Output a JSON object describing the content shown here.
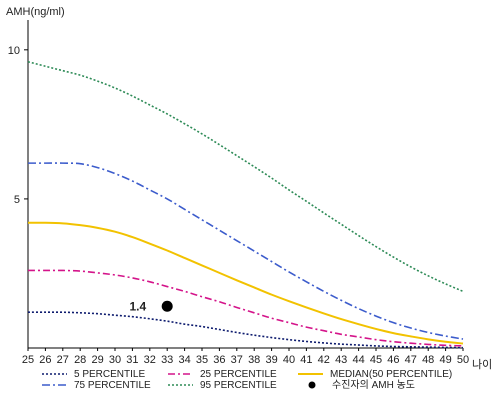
{
  "chart_data": {
    "type": "line",
    "ylabel": "AMH(ng/ml)",
    "xlabel": "나이",
    "xlim": [
      25,
      50
    ],
    "ylim": [
      0,
      11
    ],
    "x_ticks": [
      25,
      26,
      27,
      28,
      29,
      30,
      31,
      32,
      33,
      34,
      35,
      36,
      37,
      38,
      39,
      40,
      41,
      42,
      43,
      44,
      45,
      46,
      47,
      48,
      49,
      50
    ],
    "y_ticks": [
      5,
      10
    ],
    "x": [
      25,
      26,
      27,
      28,
      29,
      30,
      31,
      32,
      33,
      34,
      35,
      36,
      37,
      38,
      39,
      40,
      41,
      42,
      43,
      44,
      45,
      46,
      47,
      48,
      49,
      50
    ],
    "series": [
      {
        "key": "p5",
        "name": "5 PERCENTILE",
        "color": "#0d1b6e",
        "dash": "2,2",
        "values": [
          1.2,
          1.2,
          1.2,
          1.18,
          1.15,
          1.1,
          1.05,
          0.98,
          0.9,
          0.8,
          0.72,
          0.62,
          0.52,
          0.43,
          0.35,
          0.28,
          0.22,
          0.17,
          0.13,
          0.1,
          0.07,
          0.05,
          0.04,
          0.03,
          0.02,
          0.01
        ]
      },
      {
        "key": "p25",
        "name": "25 PERCENTILE",
        "color": "#d4148a",
        "dash": "7,3,2,3",
        "values": [
          2.6,
          2.6,
          2.6,
          2.58,
          2.52,
          2.45,
          2.35,
          2.22,
          2.06,
          1.9,
          1.72,
          1.55,
          1.36,
          1.18,
          1.0,
          0.85,
          0.7,
          0.58,
          0.46,
          0.37,
          0.28,
          0.21,
          0.16,
          0.12,
          0.09,
          0.07
        ]
      },
      {
        "key": "median",
        "name": "MEDIAN(50 PERCENTILE)",
        "color": "#f2c200",
        "dash": "",
        "values": [
          4.2,
          4.2,
          4.18,
          4.12,
          4.03,
          3.9,
          3.72,
          3.5,
          3.27,
          3.02,
          2.77,
          2.52,
          2.27,
          2.03,
          1.79,
          1.57,
          1.36,
          1.16,
          0.97,
          0.8,
          0.64,
          0.5,
          0.39,
          0.29,
          0.21,
          0.15
        ]
      },
      {
        "key": "p75",
        "name": "75 PERCENTILE",
        "color": "#3c5ccc",
        "dash": "8,3,2,3",
        "values": [
          6.2,
          6.2,
          6.2,
          6.18,
          6.05,
          5.85,
          5.6,
          5.3,
          5.0,
          4.65,
          4.3,
          3.95,
          3.6,
          3.25,
          2.9,
          2.55,
          2.22,
          1.9,
          1.6,
          1.32,
          1.07,
          0.85,
          0.67,
          0.52,
          0.4,
          0.3
        ]
      },
      {
        "key": "p95",
        "name": "95 PERCENTILE",
        "color": "#2e8b57",
        "dash": "2,2",
        "values": [
          9.6,
          9.45,
          9.3,
          9.15,
          8.95,
          8.72,
          8.45,
          8.15,
          7.85,
          7.52,
          7.18,
          6.82,
          6.45,
          6.08,
          5.7,
          5.3,
          4.92,
          4.53,
          4.15,
          3.77,
          3.4,
          3.05,
          2.72,
          2.42,
          2.15,
          1.9
        ]
      }
    ],
    "point": {
      "x": 33,
      "y": 1.4,
      "label": "1.4",
      "legend": "수진자의 AMH 농도",
      "color": "#000000"
    },
    "legend": [
      {
        "key": "p5",
        "label": "5 PERCENTILE"
      },
      {
        "key": "p25",
        "label": "25 PERCENTILE"
      },
      {
        "key": "median",
        "label": "MEDIAN(50 PERCENTILE)"
      },
      {
        "key": "p75",
        "label": "75 PERCENTILE"
      },
      {
        "key": "p95",
        "label": "95 PERCENTILE"
      },
      {
        "key": "point",
        "label": "수진자의 AMH 농도"
      }
    ],
    "legend_position": "bottom",
    "grid": false
  }
}
